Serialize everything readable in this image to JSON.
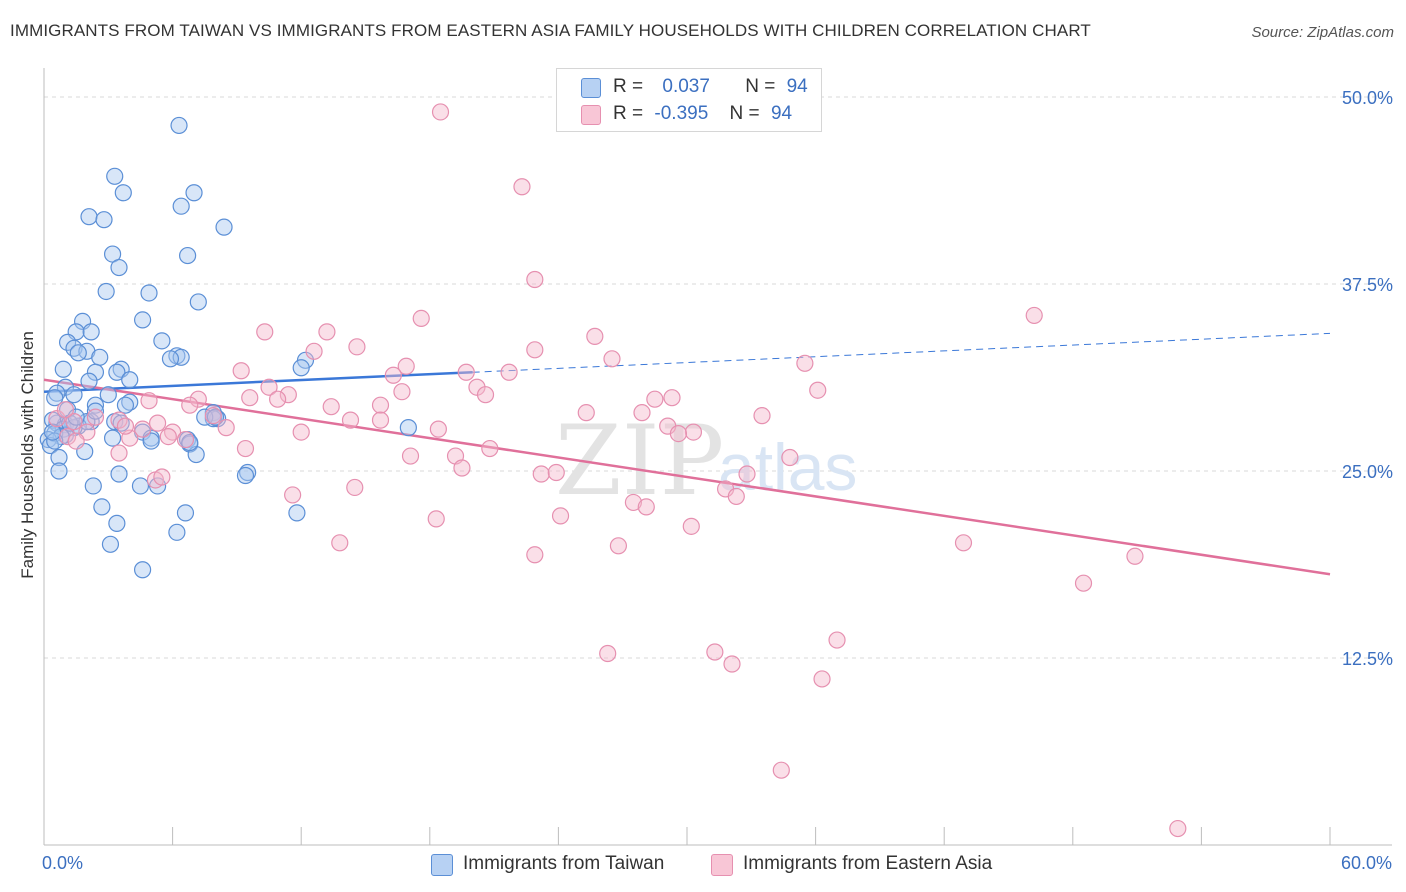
{
  "title": "IMMIGRANTS FROM TAIWAN VS IMMIGRANTS FROM EASTERN ASIA FAMILY HOUSEHOLDS WITH CHILDREN CORRELATION CHART",
  "source": "Source: ZipAtlas.com",
  "watermark": {
    "zip": "ZIP",
    "atlas": "atlas"
  },
  "colors": {
    "taiwan_fill": "#a9c8f0",
    "taiwan_stroke": "#5b8fd6",
    "taiwan_line": "#3b78d8",
    "easia_fill": "#f5b8cc",
    "easia_stroke": "#e690b0",
    "easia_line": "#e0709a",
    "tick_text": "#3b6fc0",
    "grid": "#d8d8d8"
  },
  "legend": {
    "rows": [
      {
        "r_label": "R =",
        "r_value": "0.037",
        "n_label": "N =",
        "n_value": "94"
      },
      {
        "r_label": "R =",
        "r_value": "-0.395",
        "n_label": "N =",
        "n_value": "94"
      }
    ]
  },
  "chart_data": {
    "type": "scatter",
    "xlabel": "",
    "ylabel": "Family Households with Children",
    "xlim": [
      0,
      60
    ],
    "ylim": [
      0,
      52
    ],
    "x_tick_labels": [
      "0.0%",
      "60.0%"
    ],
    "y_ticks": [
      {
        "value": 12.5,
        "label": "12.5%"
      },
      {
        "value": 25.0,
        "label": "25.0%"
      },
      {
        "value": 37.5,
        "label": "37.5%"
      },
      {
        "value": 50.0,
        "label": "50.0%"
      }
    ],
    "grid": "horizontal dashed",
    "legend_position": "top-center and bottom",
    "series": [
      {
        "name": "Immigrants from Taiwan",
        "trend": {
          "x": [
            0,
            20
          ],
          "y": [
            30.3,
            31.6
          ],
          "extended": {
            "x": [
              20,
              60
            ],
            "y": [
              31.6,
              34.2
            ]
          }
        },
        "points": [
          [
            6.3,
            48.1
          ],
          [
            3.3,
            44.7
          ],
          [
            3.7,
            43.6
          ],
          [
            7.0,
            43.6
          ],
          [
            6.4,
            42.7
          ],
          [
            2.1,
            42.0
          ],
          [
            2.8,
            41.8
          ],
          [
            8.4,
            41.3
          ],
          [
            3.2,
            39.5
          ],
          [
            6.7,
            39.4
          ],
          [
            3.5,
            38.6
          ],
          [
            2.9,
            37.0
          ],
          [
            4.9,
            36.9
          ],
          [
            7.2,
            36.3
          ],
          [
            1.8,
            35.0
          ],
          [
            4.6,
            35.1
          ],
          [
            1.5,
            34.3
          ],
          [
            2.2,
            34.3
          ],
          [
            1.1,
            33.6
          ],
          [
            1.4,
            33.2
          ],
          [
            5.5,
            33.7
          ],
          [
            2.0,
            33.0
          ],
          [
            1.6,
            32.9
          ],
          [
            6.2,
            32.7
          ],
          [
            6.4,
            32.6
          ],
          [
            5.9,
            32.5
          ],
          [
            2.6,
            32.6
          ],
          [
            12.2,
            32.4
          ],
          [
            0.9,
            31.8
          ],
          [
            3.6,
            31.8
          ],
          [
            3.4,
            31.6
          ],
          [
            2.4,
            31.6
          ],
          [
            12.0,
            31.9
          ],
          [
            4.0,
            31.1
          ],
          [
            2.1,
            31.0
          ],
          [
            1.0,
            30.6
          ],
          [
            0.6,
            30.2
          ],
          [
            1.4,
            30.1
          ],
          [
            3.0,
            30.1
          ],
          [
            0.5,
            29.9
          ],
          [
            4.0,
            29.6
          ],
          [
            3.8,
            29.4
          ],
          [
            2.4,
            29.4
          ],
          [
            1.1,
            29.1
          ],
          [
            7.9,
            28.9
          ],
          [
            8.1,
            28.5
          ],
          [
            7.9,
            28.5
          ],
          [
            3.3,
            28.3
          ],
          [
            0.6,
            28.2
          ],
          [
            1.0,
            28.1
          ],
          [
            2.2,
            28.3
          ],
          [
            1.6,
            28.0
          ],
          [
            0.4,
            28.4
          ],
          [
            3.6,
            28.2
          ],
          [
            0.9,
            27.8
          ],
          [
            1.4,
            27.9
          ],
          [
            4.6,
            27.6
          ],
          [
            1.0,
            27.4
          ],
          [
            0.5,
            27.5
          ],
          [
            0.8,
            27.3
          ],
          [
            0.2,
            27.1
          ],
          [
            3.2,
            27.2
          ],
          [
            6.7,
            27.1
          ],
          [
            5.0,
            27.2
          ],
          [
            0.3,
            26.7
          ],
          [
            0.5,
            27.0
          ],
          [
            6.8,
            26.8
          ],
          [
            1.9,
            26.3
          ],
          [
            7.1,
            26.1
          ],
          [
            0.7,
            25.9
          ],
          [
            17.0,
            27.9
          ],
          [
            0.7,
            25.0
          ],
          [
            3.5,
            24.8
          ],
          [
            9.5,
            24.9
          ],
          [
            9.4,
            24.7
          ],
          [
            2.3,
            24.0
          ],
          [
            4.5,
            24.0
          ],
          [
            5.3,
            24.0
          ],
          [
            2.7,
            22.6
          ],
          [
            3.4,
            21.5
          ],
          [
            6.6,
            22.2
          ],
          [
            11.8,
            22.2
          ],
          [
            6.2,
            20.9
          ],
          [
            3.1,
            20.1
          ],
          [
            4.6,
            18.4
          ],
          [
            1.2,
            28.2
          ],
          [
            2.0,
            28.3
          ],
          [
            2.4,
            29.0
          ],
          [
            7.5,
            28.6
          ],
          [
            0.4,
            27.6
          ],
          [
            1.5,
            28.6
          ],
          [
            6.8,
            26.9
          ],
          [
            8.0,
            28.6
          ],
          [
            5.0,
            27.0
          ]
        ]
      },
      {
        "name": "Immigrants from Eastern Asia",
        "trend": {
          "x": [
            0,
            60
          ],
          "y": [
            31.1,
            18.1
          ]
        },
        "points": [
          [
            18.5,
            49.0
          ],
          [
            22.3,
            44.0
          ],
          [
            22.9,
            37.8
          ],
          [
            46.2,
            35.4
          ],
          [
            17.6,
            35.2
          ],
          [
            10.3,
            34.3
          ],
          [
            13.2,
            34.3
          ],
          [
            25.7,
            34.0
          ],
          [
            14.6,
            33.3
          ],
          [
            12.6,
            33.0
          ],
          [
            22.9,
            33.1
          ],
          [
            26.5,
            32.5
          ],
          [
            35.5,
            32.2
          ],
          [
            16.9,
            32.0
          ],
          [
            9.2,
            31.7
          ],
          [
            16.3,
            31.4
          ],
          [
            19.7,
            31.6
          ],
          [
            21.7,
            31.6
          ],
          [
            10.5,
            30.6
          ],
          [
            20.2,
            30.6
          ],
          [
            36.1,
            30.4
          ],
          [
            11.4,
            30.1
          ],
          [
            16.7,
            30.3
          ],
          [
            20.6,
            30.1
          ],
          [
            29.3,
            29.9
          ],
          [
            28.5,
            29.8
          ],
          [
            9.6,
            29.9
          ],
          [
            10.9,
            29.8
          ],
          [
            7.2,
            29.8
          ],
          [
            4.9,
            29.7
          ],
          [
            6.8,
            29.4
          ],
          [
            13.4,
            29.3
          ],
          [
            15.7,
            29.4
          ],
          [
            25.3,
            28.9
          ],
          [
            27.9,
            28.9
          ],
          [
            33.5,
            28.7
          ],
          [
            7.9,
            28.7
          ],
          [
            3.5,
            28.4
          ],
          [
            14.3,
            28.4
          ],
          [
            15.7,
            28.4
          ],
          [
            29.1,
            28.0
          ],
          [
            18.4,
            27.8
          ],
          [
            30.3,
            27.6
          ],
          [
            12.0,
            27.6
          ],
          [
            4.6,
            27.8
          ],
          [
            6.0,
            27.6
          ],
          [
            4.0,
            27.2
          ],
          [
            2.0,
            27.6
          ],
          [
            5.8,
            27.3
          ],
          [
            6.6,
            27.1
          ],
          [
            1.1,
            27.3
          ],
          [
            1.5,
            27.0
          ],
          [
            9.4,
            26.5
          ],
          [
            20.8,
            26.5
          ],
          [
            1.4,
            28.3
          ],
          [
            3.8,
            28.0
          ],
          [
            3.5,
            26.2
          ],
          [
            17.1,
            26.0
          ],
          [
            19.2,
            26.0
          ],
          [
            34.8,
            25.9
          ],
          [
            19.5,
            25.2
          ],
          [
            23.2,
            24.8
          ],
          [
            23.9,
            24.9
          ],
          [
            32.8,
            24.8
          ],
          [
            5.2,
            24.4
          ],
          [
            5.5,
            24.6
          ],
          [
            14.5,
            23.9
          ],
          [
            31.8,
            23.8
          ],
          [
            32.3,
            23.3
          ],
          [
            11.6,
            23.4
          ],
          [
            27.5,
            22.9
          ],
          [
            28.1,
            22.6
          ],
          [
            24.1,
            22.0
          ],
          [
            18.3,
            21.8
          ],
          [
            30.2,
            21.3
          ],
          [
            13.8,
            20.2
          ],
          [
            26.8,
            20.0
          ],
          [
            42.9,
            20.2
          ],
          [
            22.9,
            19.4
          ],
          [
            50.9,
            19.3
          ],
          [
            48.5,
            17.5
          ],
          [
            26.3,
            12.8
          ],
          [
            31.3,
            12.9
          ],
          [
            32.1,
            12.1
          ],
          [
            37.0,
            13.7
          ],
          [
            36.3,
            11.1
          ],
          [
            34.4,
            5.0
          ],
          [
            52.9,
            1.1
          ],
          [
            0.6,
            28.5
          ],
          [
            2.4,
            28.6
          ],
          [
            1.0,
            29.1
          ],
          [
            5.3,
            28.2
          ],
          [
            8.5,
            27.9
          ],
          [
            29.6,
            27.5
          ]
        ]
      }
    ]
  }
}
